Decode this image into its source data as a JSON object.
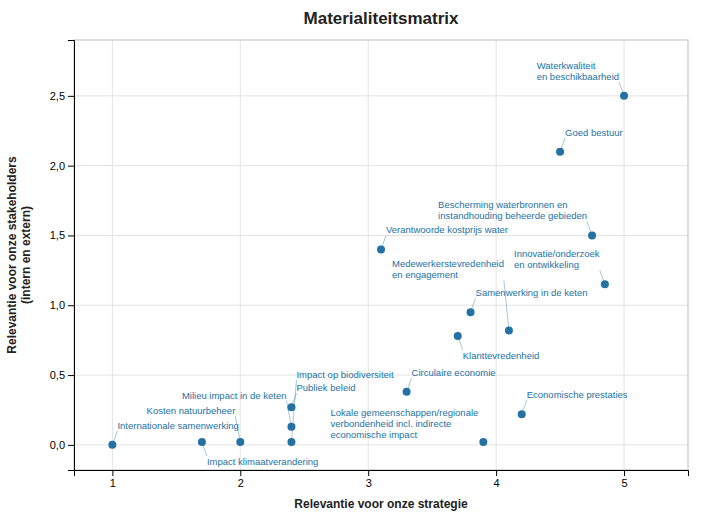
{
  "chart_data": {
    "type": "scatter",
    "title": "Materialiteitsmatrix",
    "x_label": "Relevantie voor onze strategie",
    "y_label": "Relevantie voor onze stakeholders\n(intern en extern)",
    "xlim": [
      0.7,
      5.5
    ],
    "ylim": [
      -0.18,
      2.9
    ],
    "xticks": [
      1,
      2,
      3,
      4,
      5
    ],
    "yticks": [
      {
        "value": 0.0,
        "label": "0,0"
      },
      {
        "value": 0.5,
        "label": "0,5"
      },
      {
        "value": 1.0,
        "label": "1,0"
      },
      {
        "value": 1.5,
        "label": "1,5"
      },
      {
        "value": 2.0,
        "label": "2,0"
      },
      {
        "value": 2.5,
        "label": "2,5"
      }
    ],
    "grid": true,
    "color": "#2471A3",
    "marker": "circle",
    "x": [
      1.0,
      1.7,
      2.0,
      2.4,
      2.4,
      2.4,
      3.1,
      3.3,
      3.7,
      3.8,
      3.9,
      4.2,
      4.1,
      4.5,
      4.75,
      4.85,
      5.0
    ],
    "values": [
      0.0,
      0.02,
      0.02,
      0.27,
      0.13,
      0.02,
      1.4,
      0.38,
      0.78,
      0.95,
      0.02,
      0.22,
      0.82,
      2.1,
      1.5,
      1.15,
      2.5
    ],
    "labels": [
      "Internationale samenwerking",
      "Impact klimaatverandering",
      "Kosten natuurbeheer",
      "Publiek beleid",
      "Milieu impact in de keten",
      "Impact op biodiversiteit",
      "Verantwoorde kostprijs water",
      "Circulaire economie",
      "Klanttevredenheid",
      "Samenwerking in de keten",
      "Lokale gemeenschappen/regionale\nverbondenheid incl. indirecte\neconomische impact",
      "Economische prestaties",
      "Medewerkerstevredenheid\nen engagement",
      "Goed bestuur",
      "Bescherming waterbronnen en\ninstandhouding beheerde gebieden",
      "Innovatie/onderzoek\nen ontwikkeling",
      "Waterkwaliteit\nen beschikbaarheid"
    ]
  }
}
